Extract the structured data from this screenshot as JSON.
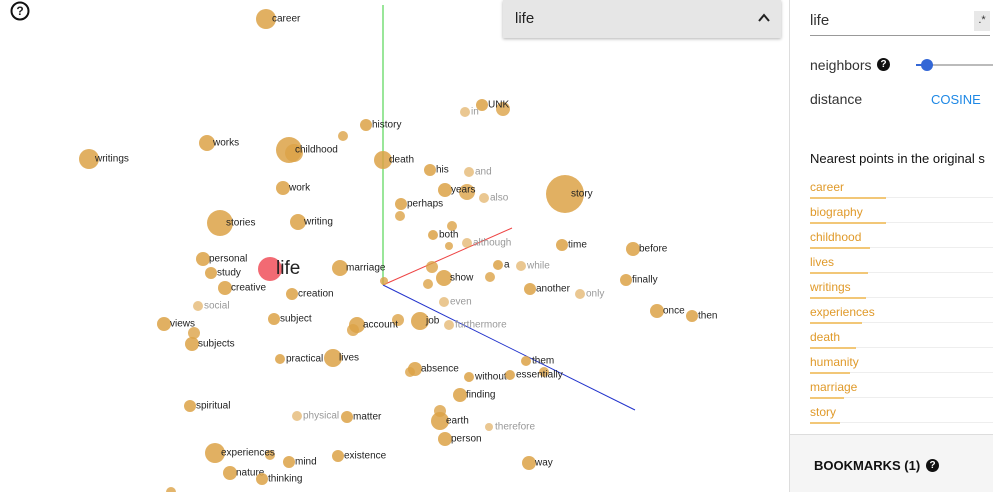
{
  "help_icon": "?",
  "dropdown": {
    "value": "life"
  },
  "projection": {
    "points": [
      "career",
      "UNK",
      "in",
      "history",
      "works",
      "childhood",
      "writings",
      "death",
      "his",
      "and",
      "years",
      "also",
      "story",
      "work",
      "perhaps",
      "writing",
      "stories",
      "both",
      "although",
      "time",
      "before",
      "personal",
      "life",
      "marriage",
      "a",
      "while",
      "study",
      "show",
      "finally",
      "creative",
      "another",
      "only",
      "creation",
      "social",
      "even",
      "once",
      "then",
      "views",
      "subject",
      "account",
      "job",
      "furthermore",
      "subjects",
      "practical",
      "lives",
      "them",
      "absence",
      "without",
      "essentially",
      "spiritual",
      "finding",
      "physical",
      "matter",
      "earth",
      "therefore",
      "person",
      "experiences",
      "mind",
      "existence",
      "nature",
      "thinking",
      "way"
    ]
  },
  "panel": {
    "search_value": "life",
    "regex_toggle": ".*",
    "neighbors_label": "neighbors",
    "neighbors_help": "?",
    "distance_label": "distance",
    "distance_option": "COSINE",
    "nearest_title": "Nearest points in the original s",
    "nearest": [
      "career",
      "biography",
      "childhood",
      "lives",
      "writings",
      "experiences",
      "death",
      "humanity",
      "marriage",
      "story"
    ],
    "bookmarks": "BOOKMARKS (1)",
    "bookmarks_help": "?"
  }
}
